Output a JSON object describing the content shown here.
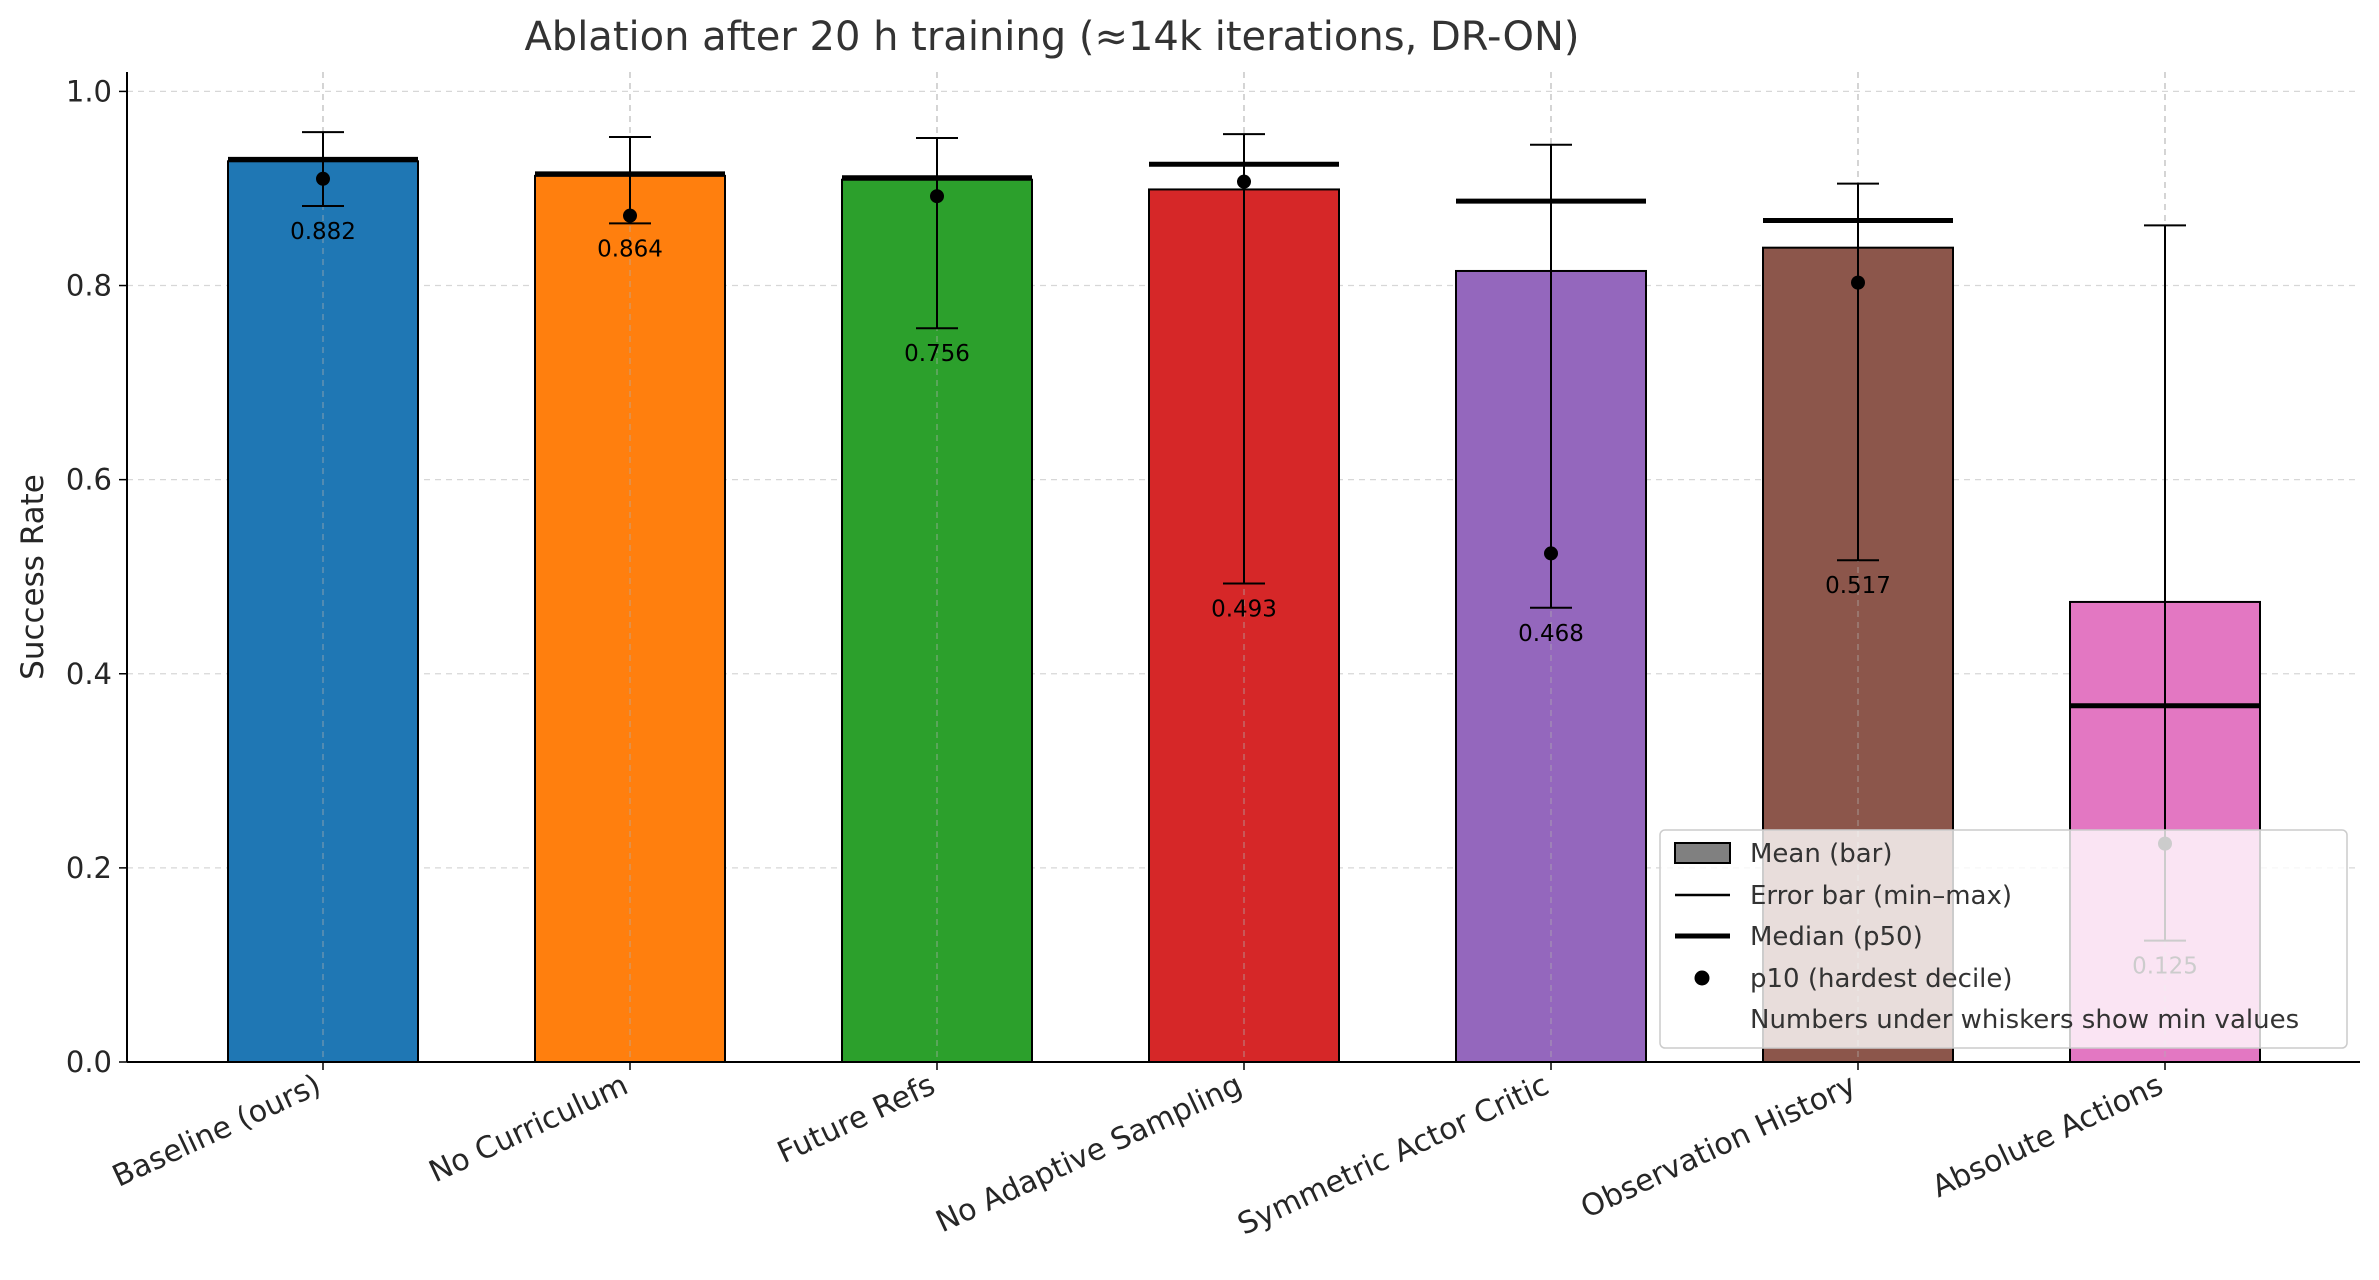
{
  "chart_data": {
    "type": "bar",
    "title": "Ablation after 20 h training (≈14k iterations, DR-ON)",
    "xlabel": "",
    "ylabel": "Success Rate",
    "ylim": [
      0,
      1.02
    ],
    "yticks": [
      0.0,
      0.2,
      0.4,
      0.6,
      0.8,
      1.0
    ],
    "ytick_labels": [
      "0.0",
      "0.2",
      "0.4",
      "0.6",
      "0.8",
      "1.0"
    ],
    "grid": true,
    "legend_position": "lower-right",
    "categories": [
      "Baseline (ours)",
      "No Curriculum",
      "Future Refs",
      "No Adaptive Sampling",
      "Symmetric Actor Critic",
      "Observation History",
      "Absolute Actions"
    ],
    "colors": [
      "#1f77b4",
      "#ff7f0e",
      "#2ca02c",
      "#d62728",
      "#9467bd",
      "#8c564b",
      "#e377c2"
    ],
    "series": [
      {
        "name": "Mean (bar)",
        "values": [
          0.928,
          0.913,
          0.909,
          0.899,
          0.815,
          0.839,
          0.474
        ]
      },
      {
        "name": "Median (p50)",
        "values": [
          0.93,
          0.915,
          0.911,
          0.925,
          0.887,
          0.867,
          0.367
        ]
      },
      {
        "name": "p10 (hardest decile)",
        "values": [
          0.91,
          0.872,
          0.892,
          0.907,
          0.524,
          0.803,
          0.225
        ]
      },
      {
        "name": "Min",
        "values": [
          0.882,
          0.864,
          0.756,
          0.493,
          0.468,
          0.517,
          0.125
        ]
      },
      {
        "name": "Max",
        "values": [
          0.958,
          0.953,
          0.952,
          0.956,
          0.945,
          0.905,
          0.862
        ]
      }
    ],
    "min_labels": [
      "0.882",
      "0.864",
      "0.756",
      "0.493",
      "0.468",
      "0.517",
      "0.125"
    ],
    "legend": {
      "mean": "Mean (bar)",
      "errorbar": "Error bar (min–max)",
      "median": "Median (p50)",
      "p10": "p10 (hardest decile)",
      "note": "Numbers under whiskers show min values"
    }
  }
}
